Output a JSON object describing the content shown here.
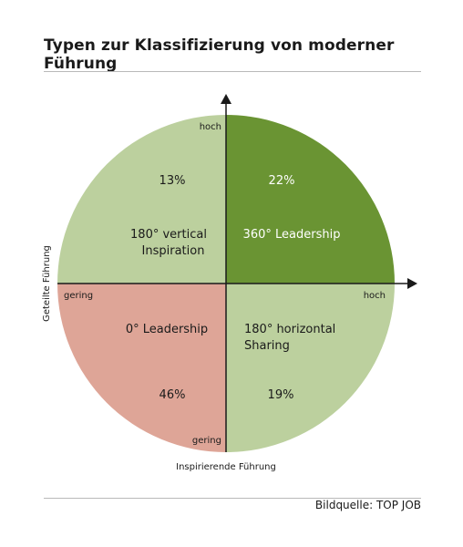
{
  "title": "Typen zur Klassifizierung von moderner Führung",
  "source": "Bildquelle: TOP JOB",
  "axes": {
    "x_title": "Inspirierende Führung",
    "y_title": "Geteilte Führung",
    "y_high": "hoch",
    "x_high": "hoch",
    "x_low": "gering",
    "y_low": "gering"
  },
  "quadrants": {
    "top_left": {
      "pct": "13%",
      "label_line1": "180° vertical",
      "label_line2": "Inspiration",
      "color": "#bcd09e"
    },
    "top_right": {
      "pct": "22%",
      "label_line1": "360° Leadership",
      "label_line2": "",
      "color": "#6a9433"
    },
    "bottom_left": {
      "pct": "46%",
      "label_line1": "0° Leadership",
      "label_line2": "",
      "color": "#dea597"
    },
    "bottom_right": {
      "pct": "19%",
      "label_line1": "180° horizontal",
      "label_line2": "Sharing",
      "color": "#bcd09e"
    }
  }
}
